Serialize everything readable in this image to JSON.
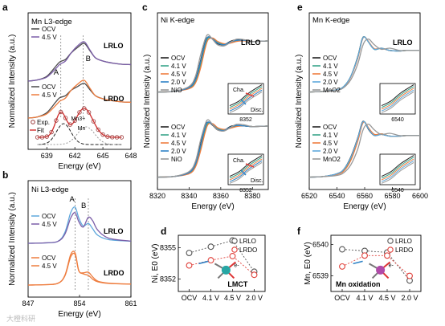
{
  "figure": {
    "watermark": "大橙科研"
  },
  "chart_data": [
    {
      "panel": "a",
      "type": "line",
      "title": "Mn L3-edge",
      "xlabel": "Energy (eV)",
      "ylabel": "Normalized Intensity (a.u.)",
      "xlim": [
        637,
        648
      ],
      "xticks": [
        "639",
        "642",
        "645",
        "648"
      ],
      "peak_labels": [
        "A",
        "B"
      ],
      "groups": [
        {
          "name": "LRLO",
          "series": [
            {
              "name": "OCV",
              "color": "#4a4a4a"
            },
            {
              "name": "4.5 V",
              "color": "#7b5ea8"
            }
          ]
        },
        {
          "name": "LRDO",
          "series": [
            {
              "name": "OCV",
              "color": "#4a4a4a"
            },
            {
              "name": "4.5 V",
              "color": "#ee7d3f"
            }
          ]
        }
      ],
      "fit": {
        "legend": [
          "Exp.",
          "Fit"
        ],
        "components": [
          "Mn3+",
          "Mn"
        ]
      },
      "x": [
        637,
        638,
        639,
        640,
        640.4,
        641,
        641.6,
        642.3,
        643,
        643.6,
        644.2,
        645,
        646,
        647,
        648
      ],
      "series": [
        {
          "name": "OCV",
          "group": "LRLO",
          "values": [
            0.02,
            0.05,
            0.14,
            0.4,
            0.5,
            0.56,
            0.72,
            0.86,
            0.96,
            0.78,
            0.6,
            0.52,
            0.47,
            0.44,
            0.43
          ]
        },
        {
          "name": "4.5 V",
          "group": "LRLO",
          "values": [
            0.02,
            0.05,
            0.12,
            0.34,
            0.44,
            0.52,
            0.72,
            0.9,
            1.0,
            0.8,
            0.6,
            0.52,
            0.47,
            0.44,
            0.43
          ]
        },
        {
          "name": "OCV",
          "group": "LRDO",
          "values": [
            0.02,
            0.05,
            0.16,
            0.45,
            0.55,
            0.6,
            0.74,
            0.84,
            0.92,
            0.76,
            0.6,
            0.52,
            0.47,
            0.44,
            0.43
          ]
        },
        {
          "name": "4.5 V",
          "group": "LRDO",
          "values": [
            0.02,
            0.05,
            0.13,
            0.36,
            0.46,
            0.54,
            0.74,
            0.9,
            1.0,
            0.8,
            0.6,
            0.52,
            0.47,
            0.44,
            0.43
          ]
        }
      ]
    },
    {
      "panel": "b",
      "type": "line",
      "title": "Ni  L3-edge",
      "xlabel": "Energy (eV)",
      "ylabel": "Normalized Intensity (a.u.)",
      "xlim": [
        847,
        861
      ],
      "xticks": [
        "847",
        "854",
        "861"
      ],
      "peak_labels": [
        "A",
        "B"
      ],
      "groups": [
        {
          "name": "LRLO",
          "series": [
            {
              "name": "OCV",
              "color": "#5fa8dc"
            },
            {
              "name": "4.5 V",
              "color": "#7b5ea8"
            }
          ]
        },
        {
          "name": "LRDO",
          "series": [
            {
              "name": "OCV",
              "color": "#ee7d3f"
            },
            {
              "name": "4.5 V",
              "color": "#ee7d3f"
            }
          ]
        }
      ],
      "x": [
        847,
        849,
        851,
        852,
        852.8,
        853.4,
        853.9,
        854.5,
        855.2,
        855.8,
        856.5,
        858,
        861
      ],
      "series": [
        {
          "name": "OCV",
          "group": "LRLO",
          "values": [
            0.0,
            0.01,
            0.05,
            0.3,
            0.85,
            1.0,
            0.7,
            0.48,
            0.55,
            0.4,
            0.22,
            0.1,
            0.06
          ]
        },
        {
          "name": "4.5 V",
          "group": "LRLO",
          "values": [
            0.0,
            0.01,
            0.05,
            0.25,
            0.7,
            0.85,
            0.6,
            0.45,
            0.72,
            0.62,
            0.36,
            0.14,
            0.06
          ]
        },
        {
          "name": "OCV",
          "group": "LRDO",
          "values": [
            0.0,
            0.01,
            0.05,
            0.3,
            0.95,
            1.0,
            0.45,
            0.35,
            0.3,
            0.18,
            0.1,
            0.05,
            0.03
          ]
        },
        {
          "name": "4.5 V",
          "group": "LRDO",
          "values": [
            0.0,
            0.01,
            0.05,
            0.28,
            0.88,
            0.95,
            0.44,
            0.38,
            0.4,
            0.25,
            0.12,
            0.06,
            0.03
          ]
        }
      ]
    },
    {
      "panel": "c",
      "type": "line",
      "title": "Ni K-edge",
      "xlabel": "Energy (eV)",
      "ylabel": "Normalized Intensity (a.u.)",
      "xlim": [
        8320,
        8390
      ],
      "xticks": [
        "8320",
        "8340",
        "8360",
        "8380"
      ],
      "inset": {
        "xtick": "8352",
        "labels": [
          "Cha.",
          "Disc."
        ]
      },
      "legend": [
        "OCV",
        "4.1 V",
        "4.5 V",
        "2.0 V",
        "NiO"
      ],
      "colors": [
        "#222222",
        "#3aa58a",
        "#ee7d3f",
        "#2e82c6",
        "#999999"
      ],
      "x": [
        8320,
        8330,
        8340,
        8344,
        8347,
        8350,
        8352,
        8355,
        8358,
        8362,
        8366,
        8370,
        8375,
        8380,
        8390
      ],
      "groups": [
        {
          "name": "LRLO",
          "series": [
            {
              "name": "OCV",
              "values": [
                0.02,
                0.03,
                0.1,
                0.25,
                0.55,
                0.9,
                1.0,
                0.96,
                0.88,
                0.86,
                0.92,
                0.95,
                0.94,
                0.92,
                0.93
              ]
            },
            {
              "name": "4.1 V",
              "values": [
                0.02,
                0.03,
                0.09,
                0.2,
                0.48,
                0.82,
                0.98,
                0.97,
                0.9,
                0.87,
                0.9,
                0.93,
                0.93,
                0.92,
                0.93
              ]
            },
            {
              "name": "4.5 V",
              "values": [
                0.02,
                0.03,
                0.08,
                0.18,
                0.42,
                0.78,
                0.95,
                0.98,
                0.92,
                0.88,
                0.89,
                0.92,
                0.93,
                0.92,
                0.93
              ]
            },
            {
              "name": "2.0 V",
              "values": [
                0.02,
                0.03,
                0.1,
                0.24,
                0.53,
                0.88,
                1.0,
                0.96,
                0.89,
                0.86,
                0.91,
                0.94,
                0.94,
                0.92,
                0.93
              ]
            },
            {
              "name": "NiO",
              "values": [
                0.02,
                0.03,
                0.12,
                0.3,
                0.65,
                0.95,
                1.04,
                0.95,
                0.86,
                0.84,
                0.9,
                0.96,
                0.95,
                0.92,
                0.93
              ]
            }
          ]
        },
        {
          "name": "LRDO",
          "series": [
            {
              "name": "OCV",
              "values": [
                0.02,
                0.03,
                0.1,
                0.26,
                0.58,
                0.92,
                1.0,
                0.94,
                0.86,
                0.85,
                0.92,
                0.94,
                0.93,
                0.92,
                0.93
              ]
            },
            {
              "name": "4.1 V",
              "values": [
                0.02,
                0.03,
                0.09,
                0.22,
                0.5,
                0.85,
                0.98,
                0.96,
                0.88,
                0.86,
                0.9,
                0.93,
                0.93,
                0.92,
                0.93
              ]
            },
            {
              "name": "4.5 V",
              "values": [
                0.02,
                0.03,
                0.08,
                0.2,
                0.46,
                0.8,
                0.96,
                0.97,
                0.9,
                0.87,
                0.89,
                0.92,
                0.93,
                0.92,
                0.93
              ]
            },
            {
              "name": "2.0 V",
              "values": [
                0.02,
                0.03,
                0.1,
                0.25,
                0.55,
                0.9,
                1.0,
                0.95,
                0.87,
                0.85,
                0.91,
                0.94,
                0.93,
                0.92,
                0.93
              ]
            },
            {
              "name": "NiO",
              "values": [
                0.02,
                0.03,
                0.12,
                0.3,
                0.65,
                0.95,
                1.04,
                0.95,
                0.86,
                0.84,
                0.9,
                0.96,
                0.95,
                0.92,
                0.93
              ]
            }
          ]
        }
      ]
    },
    {
      "panel": "d",
      "type": "scatter",
      "ylabel": "Ni, E0 (eV)",
      "categories": [
        "OCV",
        "4.1 V",
        "4.5 V",
        "2.0 V"
      ],
      "yticks": [
        "8352",
        "8355"
      ],
      "ylim": [
        8350.8,
        8356.2
      ],
      "annotation": "LMCT",
      "series": [
        {
          "name": "LRLO",
          "values": [
            8354.5,
            8355.1,
            8355.7,
            8352.7
          ],
          "color": "#555555"
        },
        {
          "name": "LRDO",
          "values": [
            8353.3,
            8353.8,
            8354.2,
            8352.4
          ],
          "color": "#e0403a"
        }
      ]
    },
    {
      "panel": "e",
      "type": "line",
      "title": "Mn K-edge",
      "xlabel": "Energy (eV)",
      "ylabel": "Normalized Intensity (a.u.)",
      "xlim": [
        6520,
        6600
      ],
      "xticks": [
        "6520",
        "6540",
        "6560",
        "6580",
        "6600"
      ],
      "inset": {
        "xtick": "6540"
      },
      "legend": [
        "OCV",
        "4.1 V",
        "4.5 V",
        "2.0 V",
        "MnO2"
      ],
      "colors": [
        "#222222",
        "#3aa58a",
        "#ee7d3f",
        "#5fa8dc",
        "#999999"
      ],
      "x": [
        6520,
        6530,
        6540,
        6545,
        6550,
        6555,
        6558,
        6560,
        6563,
        6567,
        6572,
        6578,
        6585,
        6590,
        6600
      ],
      "groups": [
        {
          "name": "LRLO",
          "series": [
            {
              "name": "OCV",
              "values": [
                0.02,
                0.03,
                0.06,
                0.12,
                0.3,
                0.65,
                0.95,
                1.0,
                0.9,
                0.78,
                0.8,
                0.76,
                0.75,
                0.76,
                0.76
              ]
            },
            {
              "name": "4.1 V",
              "values": [
                0.02,
                0.03,
                0.06,
                0.12,
                0.3,
                0.64,
                0.94,
                1.0,
                0.9,
                0.78,
                0.8,
                0.76,
                0.75,
                0.76,
                0.76
              ]
            },
            {
              "name": "4.5 V",
              "values": [
                0.02,
                0.03,
                0.06,
                0.11,
                0.29,
                0.62,
                0.93,
                1.0,
                0.91,
                0.79,
                0.8,
                0.76,
                0.75,
                0.76,
                0.76
              ]
            },
            {
              "name": "2.0 V",
              "values": [
                0.02,
                0.03,
                0.06,
                0.12,
                0.3,
                0.64,
                0.94,
                1.0,
                0.9,
                0.78,
                0.8,
                0.76,
                0.75,
                0.76,
                0.76
              ]
            },
            {
              "name": "MnO2",
              "values": [
                0.02,
                0.03,
                0.05,
                0.1,
                0.24,
                0.52,
                0.8,
                0.92,
                0.96,
                0.86,
                0.78,
                0.8,
                0.76,
                0.76,
                0.76
              ]
            }
          ]
        },
        {
          "name": "LRDO",
          "series": [
            {
              "name": "OCV",
              "values": [
                0.02,
                0.03,
                0.08,
                0.16,
                0.38,
                0.72,
                0.98,
                1.0,
                0.86,
                0.76,
                0.78,
                0.75,
                0.75,
                0.76,
                0.76
              ]
            },
            {
              "name": "4.1 V",
              "values": [
                0.02,
                0.03,
                0.07,
                0.14,
                0.34,
                0.68,
                0.95,
                1.0,
                0.88,
                0.77,
                0.79,
                0.75,
                0.75,
                0.76,
                0.76
              ]
            },
            {
              "name": "4.5 V",
              "values": [
                0.02,
                0.03,
                0.07,
                0.13,
                0.32,
                0.66,
                0.94,
                1.0,
                0.89,
                0.78,
                0.79,
                0.75,
                0.75,
                0.76,
                0.76
              ]
            },
            {
              "name": "2.0 V",
              "values": [
                0.02,
                0.03,
                0.08,
                0.16,
                0.37,
                0.71,
                0.97,
                1.0,
                0.87,
                0.76,
                0.78,
                0.75,
                0.75,
                0.76,
                0.76
              ]
            },
            {
              "name": "MnO2",
              "values": [
                0.02,
                0.03,
                0.05,
                0.1,
                0.24,
                0.52,
                0.8,
                0.92,
                0.96,
                0.86,
                0.78,
                0.8,
                0.76,
                0.76,
                0.76
              ]
            }
          ]
        }
      ]
    },
    {
      "panel": "f",
      "type": "scatter",
      "ylabel": "Mn, E0 (eV)",
      "categories": [
        "OCV",
        "4.1 V",
        "4.5 V",
        "2.0 V"
      ],
      "yticks": [
        "6539",
        "6540"
      ],
      "ylim": [
        6538.5,
        6540.3
      ],
      "annotation": "Mn oxidation",
      "series": [
        {
          "name": "LRLO",
          "values": [
            6539.85,
            6539.8,
            6539.75,
            6538.85
          ],
          "color": "#555555"
        },
        {
          "name": "LRDO",
          "values": [
            6539.3,
            6539.65,
            6539.65,
            6539.0
          ],
          "color": "#e0403a"
        }
      ]
    }
  ]
}
